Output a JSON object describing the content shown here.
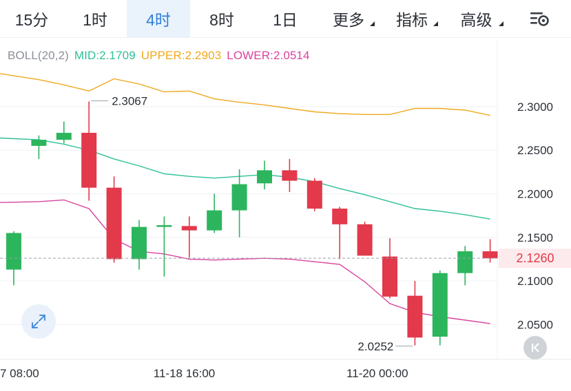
{
  "tabs": [
    {
      "label": "15分",
      "active": false,
      "dropdown": false
    },
    {
      "label": "1时",
      "active": false,
      "dropdown": false
    },
    {
      "label": "4时",
      "active": true,
      "dropdown": false
    },
    {
      "label": "8时",
      "active": false,
      "dropdown": false
    },
    {
      "label": "1日",
      "active": false,
      "dropdown": false
    },
    {
      "label": "更多",
      "active": false,
      "dropdown": true
    },
    {
      "label": "指标",
      "active": false,
      "dropdown": true
    },
    {
      "label": "高级",
      "active": false,
      "dropdown": true
    }
  ],
  "settings_icon": "chart-settings-icon",
  "indicator": {
    "name": "BOLL(20,2)",
    "mid": "MID:2.1709",
    "upper": "UPPER:2.2903",
    "lower": "LOWER:2.0514"
  },
  "colors": {
    "up": "#2db55d",
    "down": "#e2394b",
    "mid": "#2dbf97",
    "upper": "#efa91d",
    "lower": "#d9429e",
    "active_tab": "#2f7fd9",
    "price_tag": "#e2394b",
    "boll_label": "#8a8f98"
  },
  "chart_data": {
    "type": "candlestick",
    "ylim": [
      2.01,
      2.345
    ],
    "y_ticks": [
      "2.3000",
      "2.2500",
      "2.2000",
      "2.1500",
      "2.1000",
      "2.0500"
    ],
    "x_ticks": [
      {
        "label": "7 08:00",
        "index": 0
      },
      {
        "label": "11-18 16:00",
        "index": 6.8
      },
      {
        "label": "11-20 00:00",
        "index": 14.5
      }
    ],
    "last_price": "2.1260",
    "last_price_value": 2.126,
    "high_label": "2.3067",
    "high_label_value": 2.3067,
    "low_label": "2.0252",
    "low_label_value": 2.0252,
    "candles": [
      {
        "o": 2.113,
        "h": 2.157,
        "l": 2.095,
        "c": 2.155
      },
      {
        "o": 2.255,
        "h": 2.267,
        "l": 2.24,
        "c": 2.262
      },
      {
        "o": 2.262,
        "h": 2.283,
        "l": 2.258,
        "c": 2.27
      },
      {
        "o": 2.27,
        "h": 2.306,
        "l": 2.192,
        "c": 2.207
      },
      {
        "o": 2.207,
        "h": 2.22,
        "l": 2.121,
        "c": 2.125
      },
      {
        "o": 2.125,
        "h": 2.17,
        "l": 2.113,
        "c": 2.162
      },
      {
        "o": 2.162,
        "h": 2.174,
        "l": 2.105,
        "c": 2.164
      },
      {
        "o": 2.163,
        "h": 2.174,
        "l": 2.127,
        "c": 2.158
      },
      {
        "o": 2.158,
        "h": 2.2,
        "l": 2.155,
        "c": 2.181
      },
      {
        "o": 2.181,
        "h": 2.228,
        "l": 2.15,
        "c": 2.211
      },
      {
        "o": 2.212,
        "h": 2.238,
        "l": 2.205,
        "c": 2.227
      },
      {
        "o": 2.227,
        "h": 2.24,
        "l": 2.202,
        "c": 2.215
      },
      {
        "o": 2.215,
        "h": 2.218,
        "l": 2.18,
        "c": 2.183
      },
      {
        "o": 2.183,
        "h": 2.185,
        "l": 2.125,
        "c": 2.165
      },
      {
        "o": 2.165,
        "h": 2.168,
        "l": 2.129,
        "c": 2.129
      },
      {
        "o": 2.128,
        "h": 2.149,
        "l": 2.08,
        "c": 2.082
      },
      {
        "o": 2.083,
        "h": 2.1,
        "l": 2.026,
        "c": 2.035
      },
      {
        "o": 2.036,
        "h": 2.112,
        "l": 2.026,
        "c": 2.109
      },
      {
        "o": 2.109,
        "h": 2.14,
        "l": 2.095,
        "c": 2.134
      },
      {
        "o": 2.134,
        "h": 2.148,
        "l": 2.121,
        "c": 2.126
      }
    ],
    "series": [
      {
        "name": "MID",
        "values": [
          2.264,
          2.262,
          2.257,
          2.25,
          2.24,
          2.232,
          2.223,
          2.22,
          2.218,
          2.22,
          2.222,
          2.219,
          2.214,
          2.206,
          2.199,
          2.191,
          2.183,
          2.18,
          2.176,
          2.171
        ]
      },
      {
        "name": "UPPER",
        "values": [
          2.338,
          2.331,
          2.325,
          2.318,
          2.332,
          2.326,
          2.317,
          2.318,
          2.309,
          2.305,
          2.302,
          2.298,
          2.294,
          2.292,
          2.291,
          2.291,
          2.298,
          2.298,
          2.296,
          2.29
        ]
      },
      {
        "name": "LOWER",
        "values": [
          2.19,
          2.191,
          2.193,
          2.183,
          2.148,
          2.134,
          2.131,
          2.125,
          2.124,
          2.125,
          2.126,
          2.125,
          2.122,
          2.119,
          2.099,
          2.074,
          2.064,
          2.059,
          2.055,
          2.051
        ]
      }
    ]
  }
}
